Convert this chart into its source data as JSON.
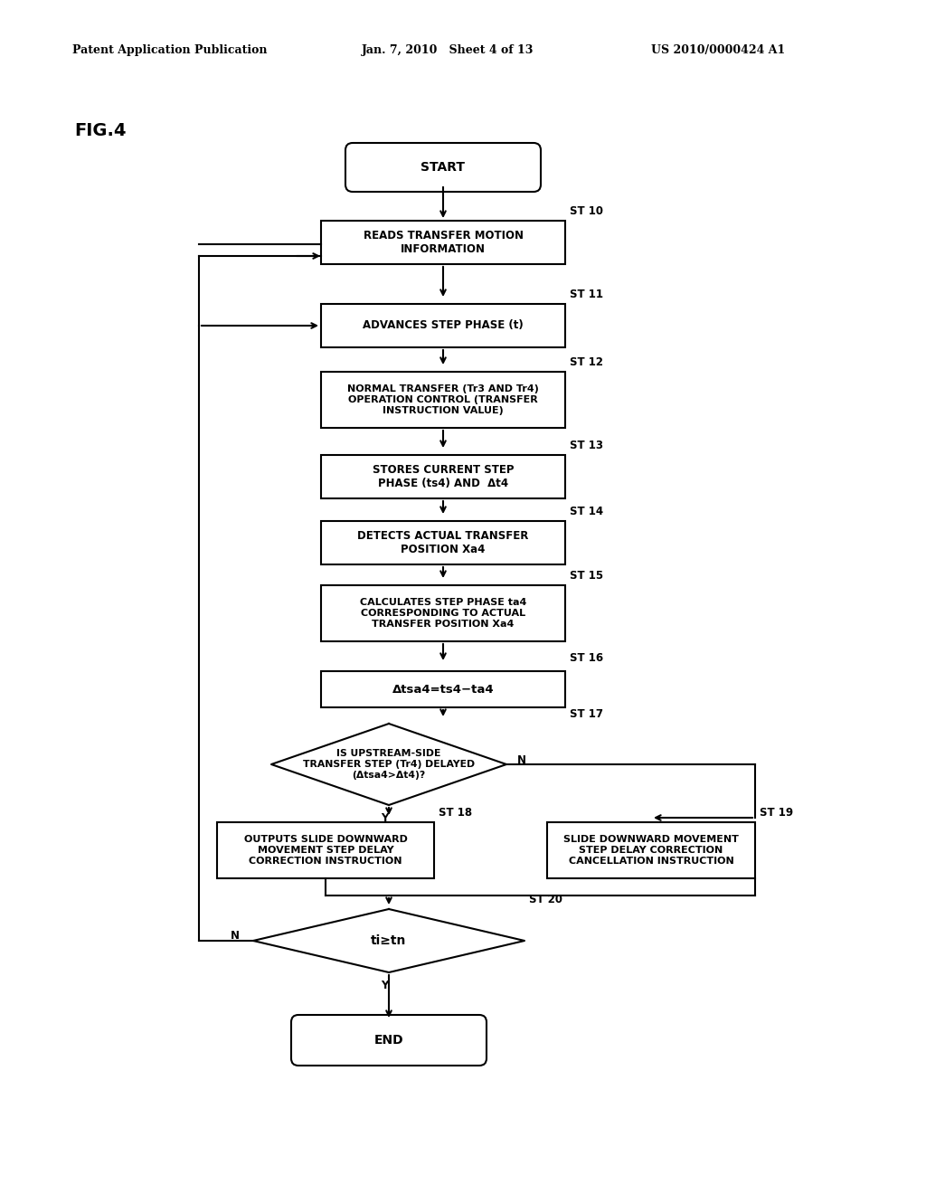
{
  "bg_color": "#ffffff",
  "line_color": "#000000",
  "text_color": "#000000",
  "header_left": "Patent Application Publication",
  "header_mid": "Jan. 7, 2010   Sheet 4 of 13",
  "header_right": "US 2010/0000424 A1",
  "fig_label": "FIG.4",
  "start_label": "START",
  "end_label": "END",
  "st10_label": "READS TRANSFER MOTION\nINFORMATION",
  "st10_step": "ST 10",
  "st11_label": "ADVANCES STEP PHASE (t)",
  "st11_step": "ST 11",
  "st12_label": "NORMAL TRANSFER (Tr3 AND Tr4)\nOPERATION CONTROL (TRANSFER\nINSTRUCTION VALUE)",
  "st12_step": "ST 12",
  "st13_label": "STORES CURRENT STEP\nPHASE (ts4) AND  Δt4",
  "st13_step": "ST 13",
  "st14_label": "DETECTS ACTUAL TRANSFER\nPOSITION Xa4",
  "st14_step": "ST 14",
  "st15_label": "CALCULATES STEP PHASE ta4\nCORRESPONDING TO ACTUAL\nTRANSFER POSITION Xa4",
  "st15_step": "ST 15",
  "st16_label": "Δtsa4=ts4−ta4",
  "st16_step": "ST 16",
  "st17_label": "IS UPSTREAM-SIDE\nTRANSFER STEP (Tr4) DELAYED\n(Δtsa4>Δt4)?",
  "st17_step": "ST 17",
  "st18_label": "OUTPUTS SLIDE DOWNWARD\nMOVEMENT STEP DELAY\nCORRECTION INSTRUCTION",
  "st18_step": "ST 18",
  "st19_label": "SLIDE DOWNWARD MOVEMENT\nSTEP DELAY CORRECTION\nCANCELLATION INSTRUCTION",
  "st19_step": "ST 19",
  "st20_label": "ti≥tn",
  "st20_step": "ST 20",
  "label_Y": "Y",
  "label_N": "N"
}
